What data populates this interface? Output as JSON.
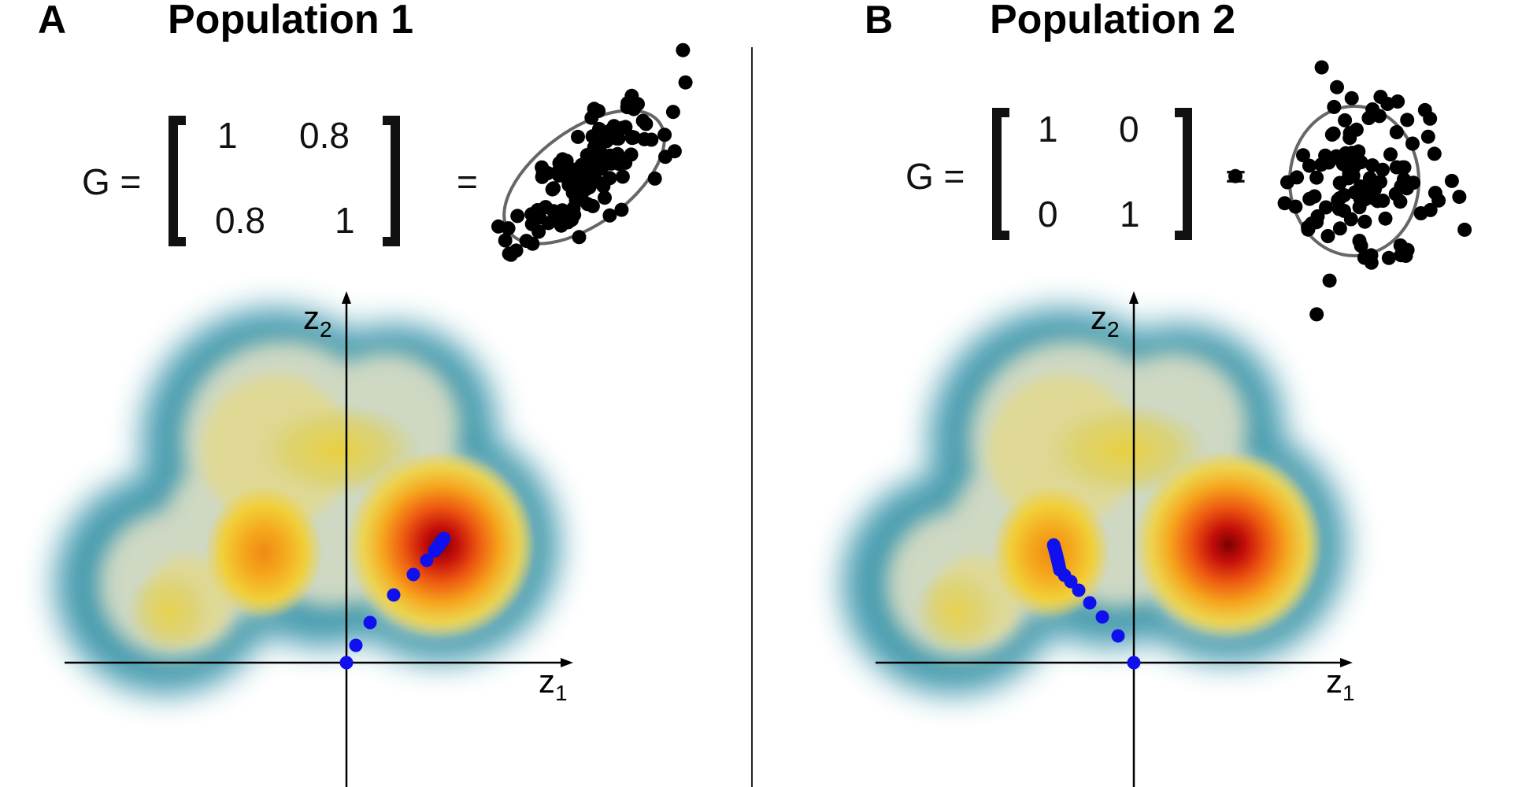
{
  "panels": [
    {
      "letter": "A",
      "title": "Population 1",
      "eq_lhs": "G =",
      "eq_rhs": "=",
      "matrix": [
        [
          "1",
          "0.8"
        ],
        [
          "0.8",
          "1"
        ]
      ],
      "scatter": {
        "correlation": 0.8,
        "n_points": 140
      },
      "axes": {
        "x": "z",
        "x_sub": "1",
        "y": "z",
        "y_sub": "2"
      },
      "trajectory": {
        "direction": "toward the upper-right fitness peak"
      }
    },
    {
      "letter": "B",
      "title": "Population 2",
      "eq_lhs": "G =",
      "eq_rhs": "=",
      "matrix": [
        [
          "1",
          "0"
        ],
        [
          "0",
          "1"
        ]
      ],
      "scatter": {
        "correlation": 0.0,
        "n_points": 110
      },
      "axes": {
        "x": "z",
        "x_sub": "1",
        "y": "z",
        "y_sub": "2"
      },
      "trajectory": {
        "direction": "toward the left fitness peak"
      }
    }
  ],
  "colors": {
    "landscape_low": "#3b95aa",
    "landscape_mid": "#f2d23a",
    "landscape_high": "#d21a0d",
    "landscape_peak": "#7a0000",
    "trajectory": "#1010ee",
    "scatter_points": "#000000",
    "ellipse": "#666666"
  }
}
